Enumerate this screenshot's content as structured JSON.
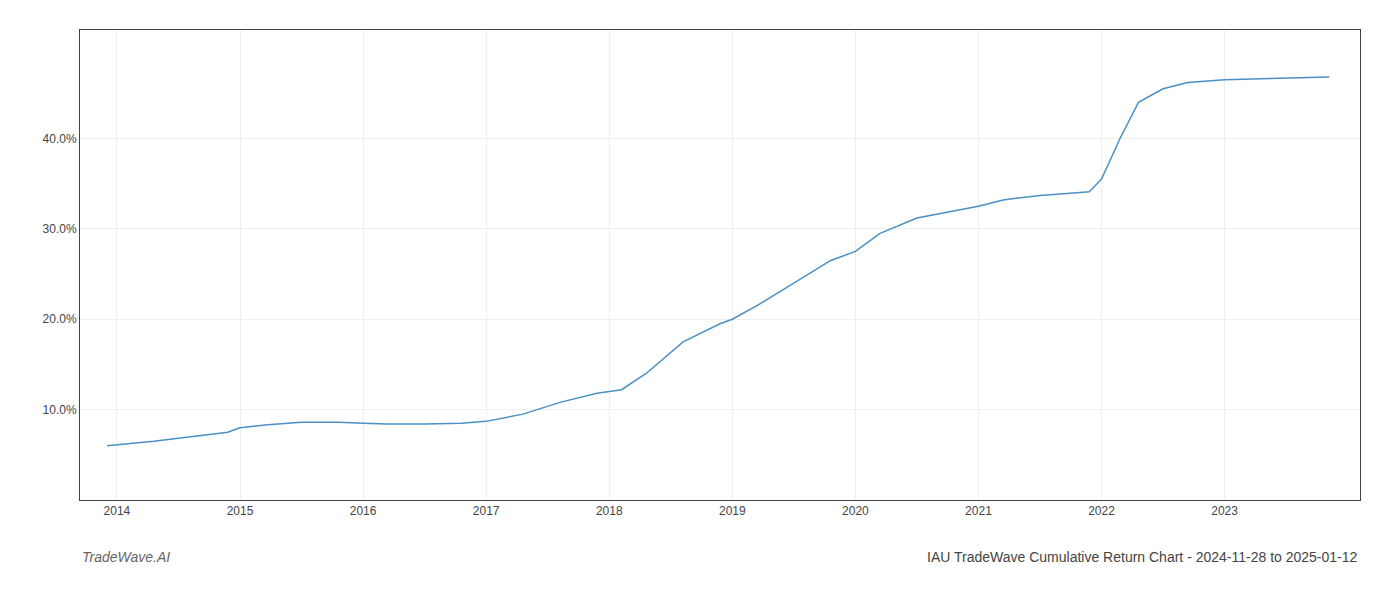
{
  "chart_data": {
    "type": "line",
    "title": "IAU TradeWave Cumulative Return Chart - 2024-11-28 to 2025-01-12",
    "annotations": [
      {
        "text": "TradeWave.AI"
      }
    ],
    "x": [
      2013.92,
      2014.0,
      2014.1,
      2014.3,
      2014.6,
      2014.9,
      2015.0,
      2015.2,
      2015.5,
      2015.8,
      2016.0,
      2016.2,
      2016.5,
      2016.8,
      2017.0,
      2017.3,
      2017.6,
      2017.9,
      2018.0,
      2018.1,
      2018.3,
      2018.6,
      2018.9,
      2019.0,
      2019.2,
      2019.5,
      2019.8,
      2020.0,
      2020.2,
      2020.5,
      2020.8,
      2021.0,
      2021.2,
      2021.5,
      2021.8,
      2021.9,
      2022.0,
      2022.15,
      2022.3,
      2022.5,
      2022.7,
      2022.9,
      2023.0,
      2023.3,
      2023.6,
      2023.85
    ],
    "values": [
      6.0,
      6.1,
      6.2,
      6.5,
      7.0,
      7.5,
      8.0,
      8.3,
      8.6,
      8.6,
      8.5,
      8.4,
      8.4,
      8.5,
      8.7,
      9.5,
      10.8,
      11.8,
      12.0,
      12.2,
      14.0,
      17.5,
      19.5,
      20.0,
      21.5,
      24.0,
      26.5,
      27.5,
      29.5,
      31.2,
      32.0,
      32.5,
      33.2,
      33.7,
      34.0,
      34.1,
      35.5,
      40.0,
      44.0,
      45.5,
      46.2,
      46.4,
      46.5,
      46.6,
      46.7,
      46.8
    ],
    "color": "#4a90c4",
    "xlim": [
      2013.7,
      2024.1
    ],
    "xticks": [
      2014,
      2015,
      2016,
      2017,
      2018,
      2019,
      2020,
      2021,
      2022,
      2023
    ],
    "ylim": [
      0,
      52
    ],
    "yticks": [
      {
        "value": 10.0,
        "label": "10.0%"
      },
      {
        "value": 20.0,
        "label": "20.0%"
      },
      {
        "value": 30.0,
        "label": "30.0%"
      },
      {
        "value": 40.0,
        "label": "40.0%"
      }
    ],
    "grid": true
  }
}
